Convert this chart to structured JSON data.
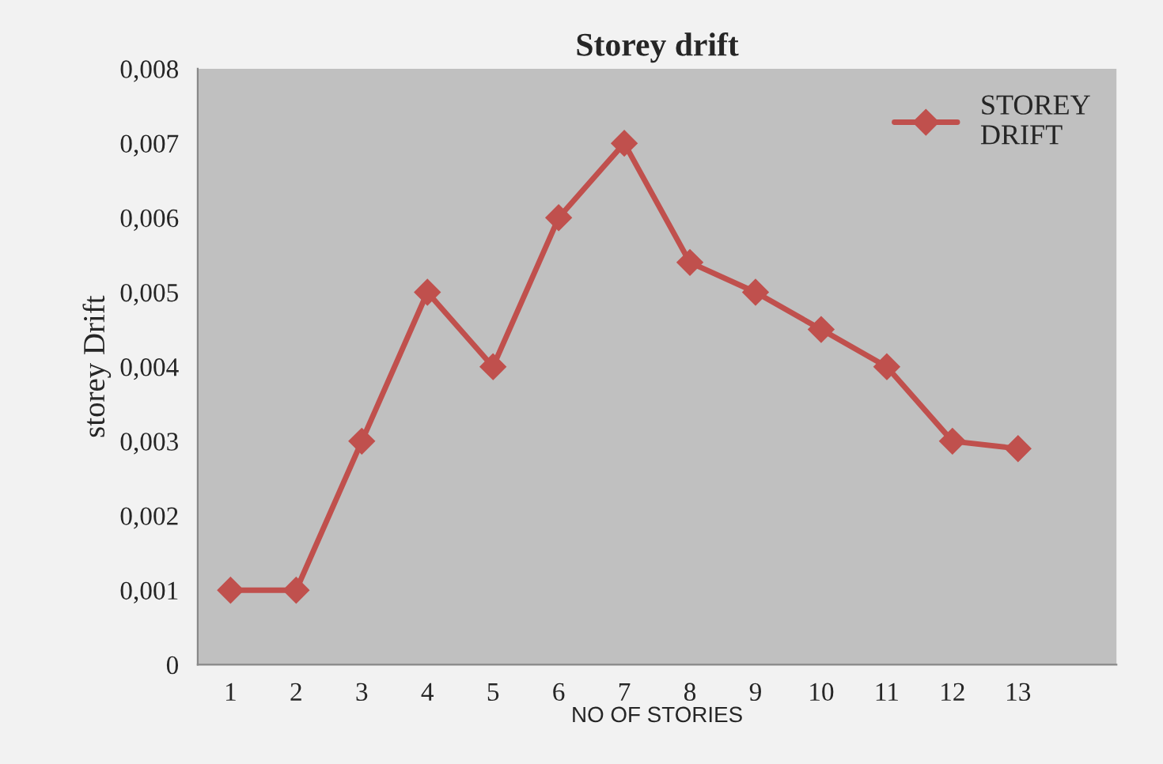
{
  "chart_data": {
    "type": "line",
    "title": "Storey drift",
    "xlabel": "NO OF STORIES",
    "ylabel": "storey Drift",
    "categories": [
      "1",
      "2",
      "3",
      "4",
      "5",
      "6",
      "7",
      "8",
      "9",
      "10",
      "11",
      "12",
      "13"
    ],
    "series": [
      {
        "name": "STOREY DRIFT",
        "color": "#c0504d",
        "values": [
          0.001,
          0.001,
          0.003,
          0.005,
          0.004,
          0.006,
          0.007,
          0.0054,
          0.005,
          0.0045,
          0.004,
          0.003,
          0.0029
        ]
      }
    ],
    "ylim": [
      0,
      0.008
    ],
    "yticks": [
      {
        "value": 0,
        "label": "0"
      },
      {
        "value": 0.001,
        "label": "0,001"
      },
      {
        "value": 0.002,
        "label": "0,002"
      },
      {
        "value": 0.003,
        "label": "0,003"
      },
      {
        "value": 0.004,
        "label": "0,004"
      },
      {
        "value": 0.005,
        "label": "0,005"
      },
      {
        "value": 0.006,
        "label": "0,006"
      },
      {
        "value": 0.007,
        "label": "0,007"
      },
      {
        "value": 0.008,
        "label": "0,008"
      }
    ],
    "marker": "diamond",
    "line_style": "solid",
    "grid": false,
    "legend": "top right"
  }
}
